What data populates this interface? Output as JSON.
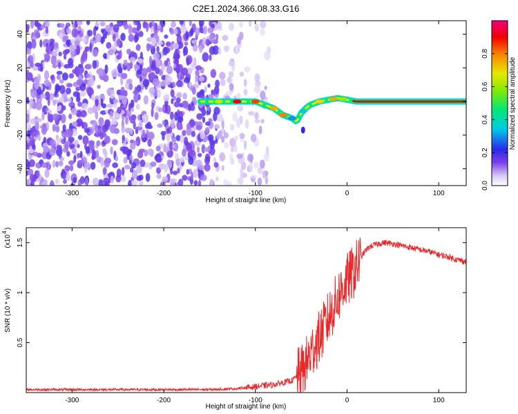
{
  "figure_title": "C2E1.2024.366.08.33.G16",
  "chart_data": [
    {
      "type": "heatmap",
      "xlabel": "Height of straight line (km)",
      "ylabel": "Frequency (Hz)",
      "xlim": [
        -350,
        130
      ],
      "ylim": [
        -50,
        48
      ],
      "x_ticks": [
        -300,
        -200,
        -100,
        0,
        100
      ],
      "y_ticks": [
        -40,
        -20,
        0,
        20,
        40
      ],
      "colorbar": {
        "label": "Normalized spectral amplitude",
        "range": [
          0,
          1
        ],
        "ticks": [
          0.0,
          0.2,
          0.4,
          0.6,
          0.8
        ]
      },
      "ridge": {
        "x": [
          -160,
          -140,
          -120,
          -100,
          -90,
          -80,
          -70,
          -60,
          -55,
          -50,
          -45,
          -40,
          -30,
          -20,
          -10,
          0,
          10,
          130
        ],
        "y": [
          0,
          0,
          0,
          0,
          -2,
          -4,
          -8,
          -10,
          -12,
          -7,
          -4,
          -2,
          0,
          1,
          2,
          1,
          0,
          0
        ]
      }
    },
    {
      "type": "line",
      "xlabel": "Height of straight line (km)",
      "ylabel": "SNR (10 * v/v)",
      "multiplier": "(x10",
      "multiplier_exp": "4",
      "multiplier_close": ")",
      "xlim": [
        -350,
        130
      ],
      "ylim": [
        0,
        1.65
      ],
      "x_ticks": [
        -300,
        -200,
        -100,
        0,
        100
      ],
      "y_ticks": [
        0.5,
        1.0,
        1.5
      ],
      "series": [
        {
          "color": "#e8282a",
          "x": [
            -350,
            -300,
            -250,
            -200,
            -150,
            -120,
            -100,
            -80,
            -60,
            -50,
            -45,
            -40,
            -35,
            -30,
            -25,
            -20,
            -15,
            -10,
            -5,
            0,
            5,
            10,
            15,
            20,
            25,
            30,
            40,
            50,
            60,
            70,
            80,
            90,
            100,
            110,
            120,
            130
          ],
          "y": [
            0.03,
            0.03,
            0.03,
            0.03,
            0.03,
            0.04,
            0.06,
            0.08,
            0.12,
            0.2,
            0.28,
            0.38,
            0.48,
            0.55,
            0.65,
            0.75,
            0.85,
            0.95,
            1.05,
            1.12,
            1.18,
            1.25,
            1.35,
            1.42,
            1.46,
            1.48,
            1.5,
            1.49,
            1.47,
            1.45,
            1.43,
            1.41,
            1.38,
            1.36,
            1.33,
            1.31
          ]
        }
      ]
    }
  ]
}
